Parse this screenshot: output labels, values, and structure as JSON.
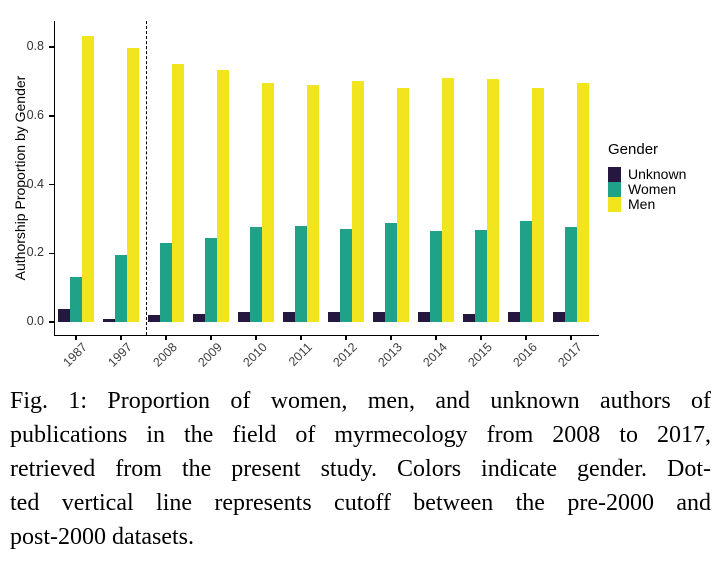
{
  "chart_data": {
    "type": "bar",
    "title": "",
    "xlabel": "",
    "ylabel": "Authorship Proportion by Gender",
    "categories": [
      "1987",
      "1997",
      "2008",
      "2009",
      "2010",
      "2011",
      "2012",
      "2013",
      "2014",
      "2015",
      "2016",
      "2017"
    ],
    "series": [
      {
        "name": "Unknown",
        "color": "#261740",
        "values": [
          0.037,
          0.008,
          0.019,
          0.022,
          0.029,
          0.029,
          0.03,
          0.028,
          0.028,
          0.023,
          0.028,
          0.028
        ]
      },
      {
        "name": "Women",
        "color": "#1fa287",
        "values": [
          0.131,
          0.196,
          0.231,
          0.245,
          0.276,
          0.279,
          0.271,
          0.289,
          0.264,
          0.268,
          0.293,
          0.277
        ]
      },
      {
        "name": "Men",
        "color": "#f3e51d",
        "values": [
          0.833,
          0.798,
          0.75,
          0.733,
          0.696,
          0.689,
          0.7,
          0.682,
          0.711,
          0.706,
          0.68,
          0.696
        ]
      }
    ],
    "ylim": [
      0,
      0.875
    ],
    "yticks": [
      0.0,
      0.2,
      0.4,
      0.6,
      0.8
    ],
    "ytick_labels": [
      "0.0",
      "0.2",
      "0.4",
      "0.6",
      "0.8"
    ],
    "grid": false,
    "legend": {
      "title": "Gender",
      "position": "right"
    },
    "annotations": [
      {
        "type": "vline",
        "style": "dashed",
        "between_categories": [
          "1997",
          "2008"
        ],
        "meaning": "cutoff between pre-2000 and post-2000 datasets"
      }
    ]
  },
  "figure": {
    "caption_lines": [
      "Fig. 1: Proportion of women, men, and unknown authors of",
      "publications in the field of myrmecology from 2008 to 2017,",
      "retrieved from the present study. Colors indicate gender. Dot-",
      "ted vertical line represents cutoff between the pre-2000 and",
      "post-2000 datasets."
    ]
  }
}
